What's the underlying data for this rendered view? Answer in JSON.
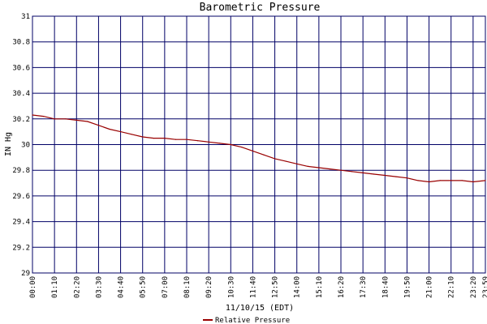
{
  "chart_data": {
    "type": "line",
    "title": "Barometric Pressure",
    "xlabel": "11/10/15 (EDT)",
    "ylabel": "IN Hg",
    "ylim": [
      29,
      31
    ],
    "yticks": [
      "29",
      "29.2",
      "29.4",
      "29.6",
      "29.8",
      "30",
      "30.2",
      "30.4",
      "30.6",
      "30.8",
      "31"
    ],
    "xticks": [
      "00:00",
      "01:10",
      "02:20",
      "03:30",
      "04:40",
      "05:50",
      "07:00",
      "08:10",
      "09:20",
      "10:30",
      "11:40",
      "12:50",
      "14:00",
      "15:10",
      "16:20",
      "17:30",
      "18:40",
      "19:50",
      "21:00",
      "22:10",
      "23:20",
      "23:59"
    ],
    "grid": true,
    "legend_position": "bottom-center",
    "colors": {
      "series": "#990000",
      "grid": "#000066",
      "background": "#ffffff"
    },
    "series": [
      {
        "name": "Relative Pressure",
        "x": [
          "00:00",
          "00:35",
          "01:10",
          "01:45",
          "02:20",
          "02:55",
          "03:30",
          "04:05",
          "04:40",
          "05:15",
          "05:50",
          "06:25",
          "07:00",
          "07:35",
          "08:10",
          "08:45",
          "09:20",
          "09:55",
          "10:30",
          "11:05",
          "11:40",
          "12:15",
          "12:50",
          "13:25",
          "14:00",
          "14:35",
          "15:10",
          "15:45",
          "16:20",
          "16:55",
          "17:30",
          "18:05",
          "18:40",
          "19:15",
          "19:50",
          "20:25",
          "21:00",
          "21:35",
          "22:10",
          "22:45",
          "23:20",
          "23:59"
        ],
        "values": [
          30.23,
          30.22,
          30.2,
          30.2,
          30.19,
          30.18,
          30.15,
          30.12,
          30.1,
          30.08,
          30.06,
          30.05,
          30.05,
          30.04,
          30.04,
          30.03,
          30.02,
          30.01,
          30.0,
          29.98,
          29.95,
          29.92,
          29.89,
          29.87,
          29.85,
          29.83,
          29.82,
          29.81,
          29.8,
          29.79,
          29.78,
          29.77,
          29.76,
          29.75,
          29.74,
          29.72,
          29.71,
          29.72,
          29.72,
          29.72,
          29.71,
          29.72
        ]
      }
    ]
  }
}
